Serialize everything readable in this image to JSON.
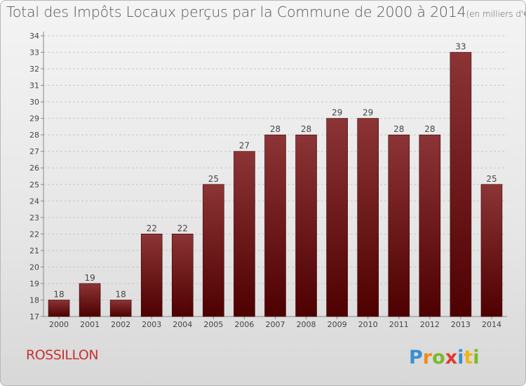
{
  "chart_data": {
    "type": "bar",
    "title": "Total des Impôts Locaux perçus par la Commune de 2000 à 2014",
    "unit_note": "(en milliers d'€)",
    "categories": [
      "2000",
      "2001",
      "2002",
      "2003",
      "2004",
      "2005",
      "2006",
      "2007",
      "2008",
      "2009",
      "2010",
      "2011",
      "2012",
      "2013",
      "2014"
    ],
    "values": [
      18,
      19,
      18,
      22,
      22,
      25,
      27,
      28,
      28,
      29,
      29,
      28,
      28,
      33,
      25
    ],
    "ylim": [
      17,
      34
    ],
    "yticks": [
      17,
      18,
      19,
      20,
      21,
      22,
      23,
      24,
      25,
      26,
      27,
      28,
      29,
      30,
      31,
      32,
      33,
      34
    ],
    "grid": true,
    "bar_color_top": "#8c3436",
    "bar_color_bottom": "#4e0000"
  },
  "footer": {
    "commune": "ROSSILLON",
    "logo": "Proxiti"
  }
}
